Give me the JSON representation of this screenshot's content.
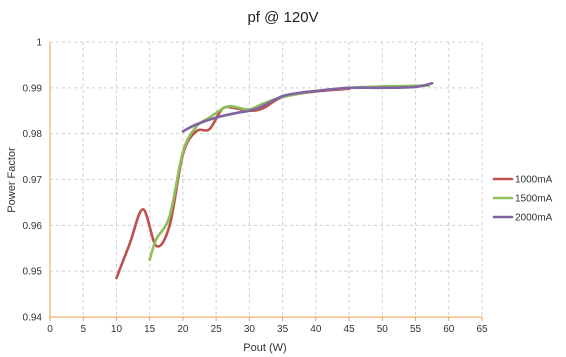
{
  "chart_data": {
    "type": "line",
    "title": "pf @ 120V",
    "xlabel": "Pout (W)",
    "ylabel": "Power Factor",
    "xlim": [
      0,
      65
    ],
    "ylim": [
      0.94,
      1
    ],
    "x_ticks": [
      0,
      5,
      10,
      15,
      20,
      25,
      30,
      35,
      40,
      45,
      50,
      55,
      60,
      65
    ],
    "y_ticks": [
      "0.94",
      "0.95",
      "0.96",
      "0.97",
      "0.98",
      "0.99",
      "1"
    ],
    "grid": true,
    "legend_position": "right",
    "series": [
      {
        "name": "1000mA",
        "color": "#c0504d",
        "x": [
          10,
          12,
          14,
          16,
          18,
          20,
          22,
          24,
          26,
          28,
          30,
          32,
          35,
          40,
          45
        ],
        "y": [
          0.9485,
          0.956,
          0.9635,
          0.9555,
          0.96,
          0.9755,
          0.9805,
          0.981,
          0.9855,
          0.9855,
          0.985,
          0.9855,
          0.988,
          0.9892,
          0.9898
        ]
      },
      {
        "name": "1500mA",
        "color": "#8dc05a",
        "x": [
          15,
          16,
          18,
          20,
          22,
          24,
          26,
          27,
          28,
          30,
          32,
          35,
          40,
          45,
          50,
          57
        ],
        "y": [
          0.9525,
          0.957,
          0.962,
          0.976,
          0.9815,
          0.9835,
          0.9855,
          0.986,
          0.9858,
          0.9853,
          0.9865,
          0.988,
          0.9893,
          0.99,
          0.9903,
          0.9905
        ]
      },
      {
        "name": "2000mA",
        "color": "#8064a2",
        "x": [
          20,
          22,
          25,
          28,
          30,
          32,
          35,
          38,
          40,
          45,
          50,
          55,
          57.5
        ],
        "y": [
          0.9805,
          0.982,
          0.9835,
          0.9845,
          0.985,
          0.986,
          0.9882,
          0.989,
          0.9893,
          0.99,
          0.99,
          0.9902,
          0.991
        ]
      }
    ]
  }
}
